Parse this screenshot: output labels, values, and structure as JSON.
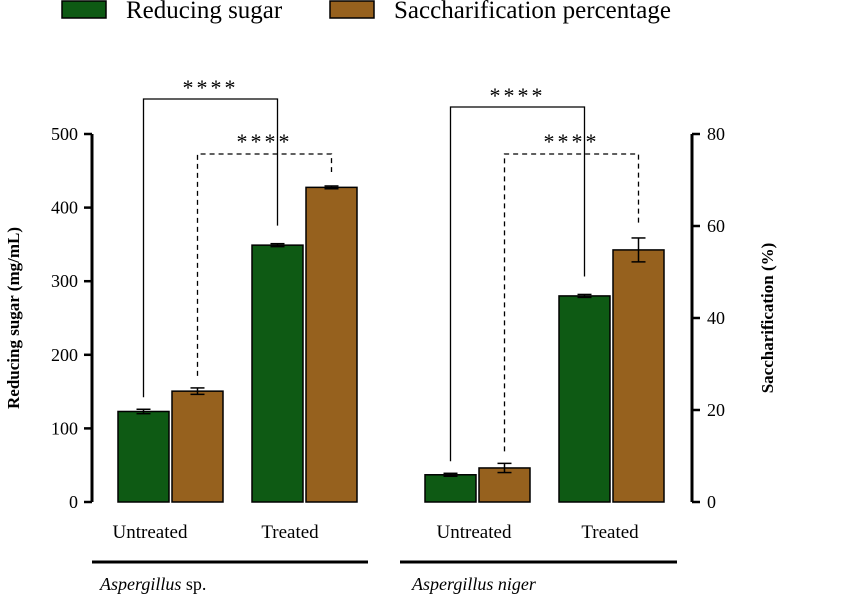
{
  "chart_data": {
    "type": "bar",
    "legend": {
      "position": "top",
      "items": [
        {
          "label": "Reducing sugar",
          "color": "#0e5a14"
        },
        {
          "label": "Saccharification percentage",
          "color": "#96611e"
        }
      ]
    },
    "ylabel_left": "Reducing sugar (mg/mL)",
    "ylabel_right": "Saccharification (%)",
    "ylim_left": [
      0,
      500
    ],
    "ylim_right": [
      0,
      80
    ],
    "left_ticks": [
      "0",
      "100",
      "200",
      "300",
      "400",
      "500"
    ],
    "right_ticks": [
      "0",
      "20",
      "40",
      "60",
      "80"
    ],
    "groups": [
      {
        "organism_italic": "Aspergillus",
        "organism_rest": " sp.",
        "categories": [
          {
            "label": "Untreated",
            "reducing_sugar": 123,
            "reducing_sugar_err": 3,
            "saccharification": 24.1,
            "saccharification_err": 0.7
          },
          {
            "label": "Treated",
            "reducing_sugar": 349,
            "reducing_sugar_err": 2,
            "saccharification": 68.4,
            "saccharification_err": 0.3
          }
        ],
        "significance": [
          "****",
          "****"
        ]
      },
      {
        "organism_italic": "Aspergillus niger",
        "organism_rest": "",
        "categories": [
          {
            "label": "Untreated",
            "reducing_sugar": 37,
            "reducing_sugar_err": 2,
            "saccharification": 7.4,
            "saccharification_err": 1.0
          },
          {
            "label": "Treated",
            "reducing_sugar": 280,
            "reducing_sugar_err": 2,
            "saccharification": 54.8,
            "saccharification_err": 2.6
          }
        ],
        "significance": [
          "****",
          "****"
        ]
      }
    ]
  }
}
